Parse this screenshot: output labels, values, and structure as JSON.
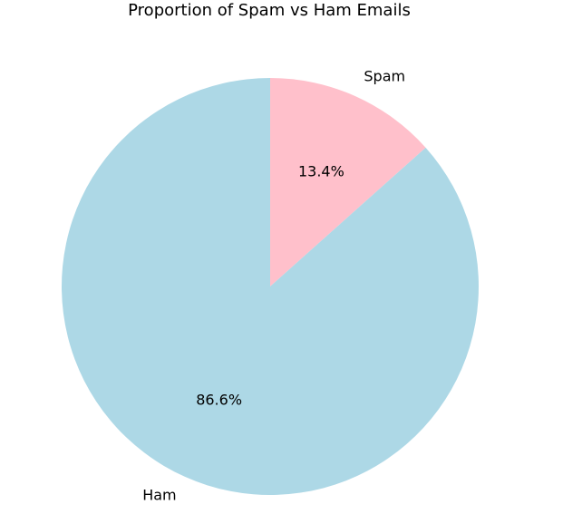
{
  "chart_data": {
    "type": "pie",
    "title": "Proportion of Spam vs Ham Emails",
    "categories": [
      "Spam",
      "Ham"
    ],
    "values": [
      13.4,
      86.6
    ],
    "percent_labels": [
      "13.4%",
      "86.6%"
    ],
    "colors": [
      "#ffc0cb",
      "#add8e6"
    ],
    "start_angle": 90,
    "direction": "clockwise",
    "legend": "none"
  }
}
